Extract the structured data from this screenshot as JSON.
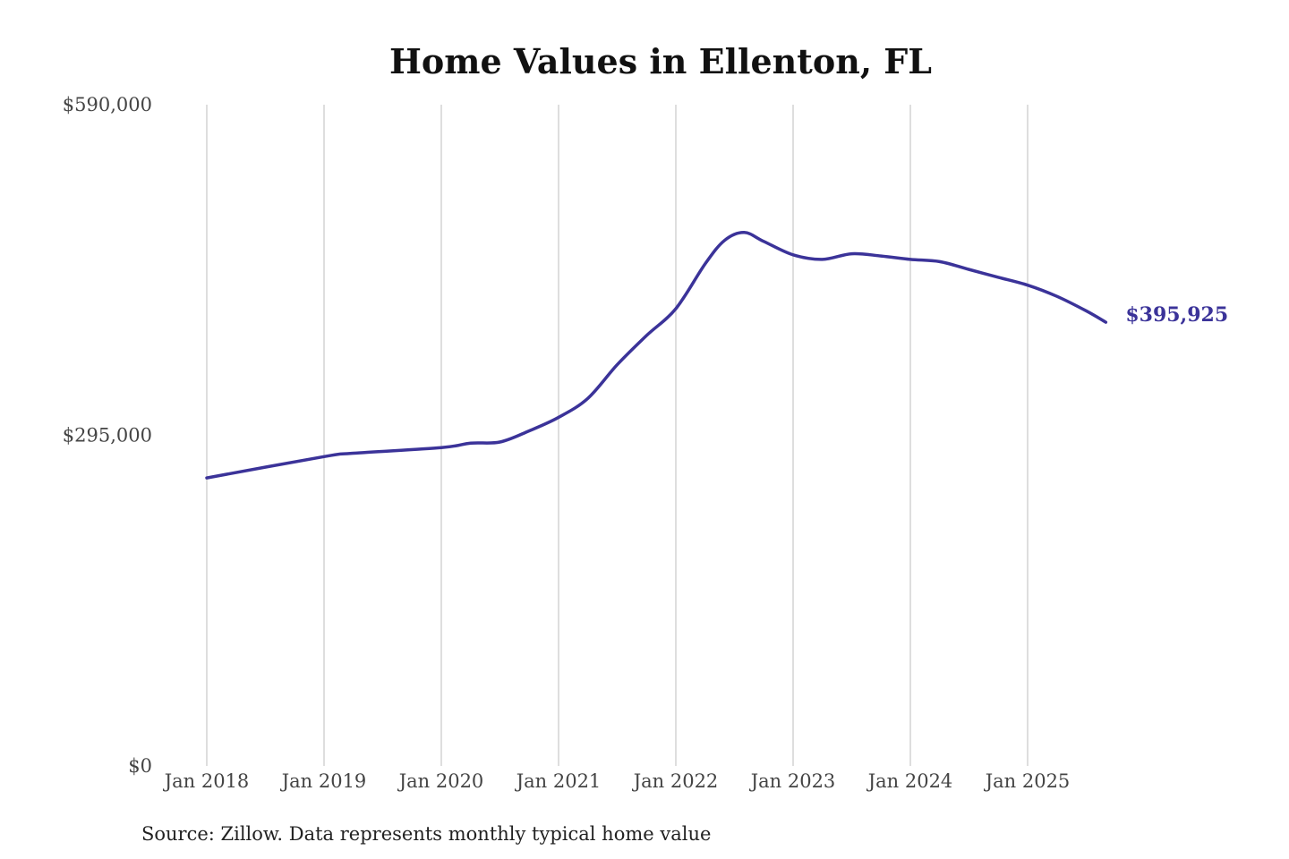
{
  "chart_data": {
    "type": "line",
    "title": "Home Values in Ellenton, FL",
    "source": "Source: Zillow. Data represents monthly typical home value",
    "ylim": [
      0,
      590000
    ],
    "y_ticks": [
      0,
      295000,
      590000
    ],
    "y_tick_labels": [
      "$0",
      "$295,000",
      "$590,000"
    ],
    "x_tick_labels": [
      "Jan 2018",
      "Jan 2019",
      "Jan 2020",
      "Jan 2021",
      "Jan 2022",
      "Jan 2023",
      "Jan 2024",
      "Jan 2025"
    ],
    "x_ticks": [
      "2018-01",
      "2019-01",
      "2020-01",
      "2021-01",
      "2022-01",
      "2023-01",
      "2024-01",
      "2025-01"
    ],
    "grid": "vertical",
    "line_color": "#3b3399",
    "end_label": "$395,925",
    "series": [
      {
        "x": [
          "2018-01",
          "2019-01",
          "2019-04",
          "2020-01",
          "2020-04",
          "2020-07",
          "2020-10",
          "2021-01",
          "2021-04",
          "2021-07",
          "2021-10",
          "2022-01",
          "2022-04",
          "2022-06",
          "2022-08",
          "2022-10",
          "2023-01",
          "2023-04",
          "2023-07",
          "2023-10",
          "2024-01",
          "2024-04",
          "2024-07",
          "2024-10",
          "2025-01",
          "2025-04",
          "2025-07",
          "2025-09"
        ],
        "values": [
          257000,
          276000,
          279000,
          284000,
          288000,
          289000,
          299000,
          311000,
          328000,
          358000,
          384000,
          408000,
          448000,
          469000,
          476000,
          468000,
          456000,
          452000,
          457000,
          455000,
          452000,
          450000,
          443000,
          436000,
          429000,
          419000,
          406000,
          395925
        ]
      }
    ]
  }
}
